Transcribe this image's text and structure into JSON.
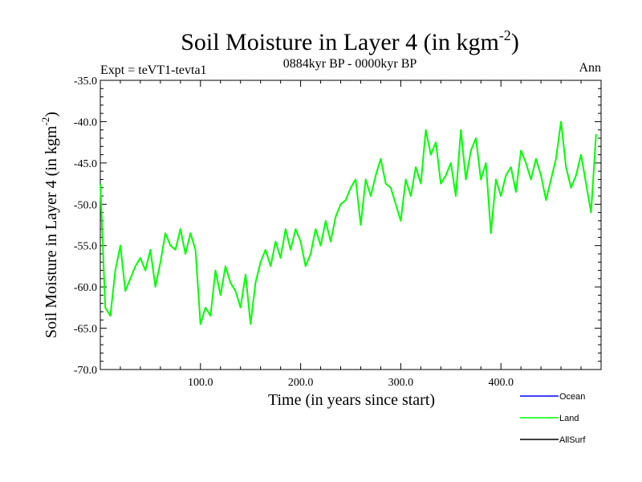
{
  "chart_data": {
    "type": "line",
    "title": "Soil Moisture in Layer 4 (in kgm",
    "title_sup": "-2",
    "title_close": ")",
    "subtitle": "0884kyr BP - 0000kyr BP",
    "experiment_label": "Expt = teVT1-tevta1",
    "season_label": "Ann",
    "xlabel": "Time (in years since start)",
    "ylabel": "Soil Moisture in Layer 4 (in kgm",
    "ylabel_sup": "-2",
    "ylabel_close": ")",
    "xlim": [
      0,
      500
    ],
    "ylim": [
      -70,
      -35
    ],
    "xticks": [
      100,
      200,
      300,
      400
    ],
    "xtick_labels": [
      "100.0",
      "200.0",
      "300.0",
      "400.0"
    ],
    "yticks": [
      -35,
      -40,
      -45,
      -50,
      -55,
      -60,
      -65,
      -70
    ],
    "ytick_labels": [
      "-35.0",
      "-40.0",
      "-45.0",
      "-50.0",
      "-55.0",
      "-60.0",
      "-65.0",
      "-70.0"
    ],
    "legend_placement": "bottom-right",
    "legend": [
      {
        "name": "Ocean",
        "color": "#0000ff"
      },
      {
        "name": "Land",
        "color": "#00ff00"
      },
      {
        "name": "AllSurf",
        "color": "#000000"
      }
    ],
    "series": [
      {
        "name": "Land",
        "color": "#00ff00",
        "x": [
          0,
          5,
          10,
          15,
          20,
          25,
          30,
          35,
          40,
          45,
          50,
          55,
          60,
          65,
          70,
          75,
          80,
          85,
          90,
          95,
          100,
          105,
          110,
          115,
          120,
          125,
          130,
          135,
          140,
          145,
          150,
          155,
          160,
          165,
          170,
          175,
          180,
          185,
          190,
          195,
          200,
          205,
          210,
          215,
          220,
          225,
          230,
          235,
          240,
          245,
          250,
          255,
          260,
          265,
          270,
          275,
          280,
          285,
          290,
          295,
          300,
          305,
          310,
          315,
          320,
          325,
          330,
          335,
          340,
          345,
          350,
          355,
          360,
          365,
          370,
          375,
          380,
          385,
          390,
          395,
          400,
          405,
          410,
          415,
          420,
          425,
          430,
          435,
          440,
          445,
          450,
          455,
          460,
          465,
          470,
          475,
          480,
          485,
          490,
          495
        ],
        "values": [
          -47.5,
          -62.5,
          -63.5,
          -58.0,
          -55.0,
          -60.5,
          -59.0,
          -57.5,
          -56.5,
          -58.0,
          -55.5,
          -60.0,
          -57.0,
          -53.5,
          -55.0,
          -55.5,
          -53.0,
          -56.0,
          -53.5,
          -55.5,
          -64.5,
          -62.5,
          -63.5,
          -58.0,
          -61.0,
          -57.5,
          -59.5,
          -60.5,
          -62.5,
          -58.5,
          -64.5,
          -59.5,
          -57.0,
          -55.5,
          -57.5,
          -54.5,
          -56.5,
          -53.0,
          -55.5,
          -53.0,
          -54.5,
          -57.5,
          -56.0,
          -53.0,
          -55.0,
          -52.0,
          -54.5,
          -51.5,
          -50.0,
          -49.5,
          -48.0,
          -47.0,
          -52.5,
          -47.0,
          -49.0,
          -46.5,
          -44.5,
          -47.5,
          -48.0,
          -50.0,
          -52.0,
          -47.0,
          -49.0,
          -45.5,
          -47.5,
          -41.0,
          -44.0,
          -42.5,
          -47.5,
          -46.5,
          -45.0,
          -49.0,
          -41.0,
          -47.0,
          -43.5,
          -42.0,
          -47.0,
          -45.0,
          -53.5,
          -47.0,
          -49.0,
          -46.5,
          -45.5,
          -48.5,
          -43.5,
          -45.0,
          -47.0,
          -44.5,
          -46.5,
          -49.5,
          -47.0,
          -44.5,
          -40.0,
          -45.5,
          -48.0,
          -46.5,
          -44.0,
          -47.5,
          -51.0,
          -41.5
        ]
      }
    ]
  }
}
